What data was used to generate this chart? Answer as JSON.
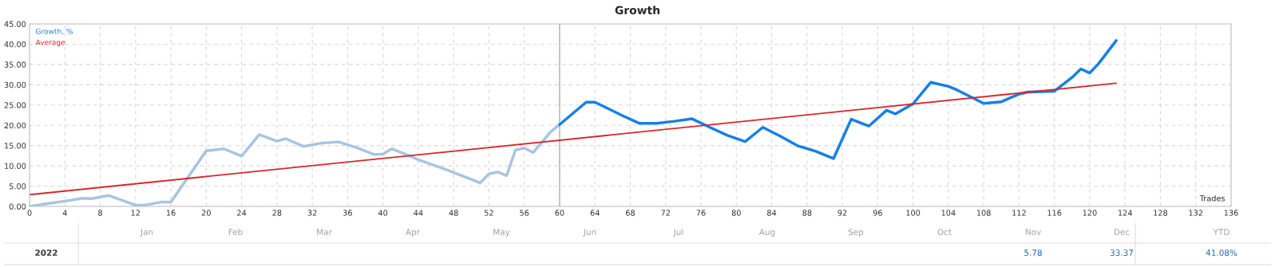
{
  "chart_data": {
    "type": "line",
    "title": "Growth",
    "xlabel": "Trades",
    "series": [
      {
        "color": "#a9c4e0",
        "x": [
          0,
          2,
          4,
          6,
          7,
          9,
          11,
          12,
          13,
          15,
          16,
          20,
          22,
          24,
          26,
          28,
          29,
          31,
          33,
          35,
          37,
          39,
          40,
          41,
          43,
          44,
          47,
          51,
          52,
          53,
          54,
          55,
          56,
          57,
          59,
          60
        ],
        "values": [
          0,
          0.7,
          1.3,
          2.0,
          1.9,
          2.7,
          1.1,
          0.3,
          0.3,
          1.1,
          1.1,
          13.7,
          14.2,
          12.4,
          17.7,
          16.1,
          16.7,
          14.8,
          15.6,
          15.9,
          14.5,
          12.8,
          12.9,
          14.2,
          12.5,
          11.5,
          9.2,
          5.8,
          8.0,
          8.5,
          7.6,
          13.9,
          14.4,
          13.3,
          18.4,
          20.2
        ]
      },
      {
        "name": "Growth, %",
        "color": "#1580e6",
        "x": [
          60,
          63,
          64,
          67,
          69,
          71,
          73,
          75,
          77,
          79,
          81,
          83,
          85,
          87,
          89,
          91,
          93,
          95,
          97,
          98,
          100,
          102,
          104,
          105,
          108,
          110,
          112,
          113,
          116,
          118,
          119,
          120,
          121,
          123
        ],
        "values": [
          20.2,
          25.7,
          25.7,
          22.5,
          20.5,
          20.5,
          21.0,
          21.6,
          19.5,
          17.5,
          16.0,
          19.5,
          17.3,
          14.9,
          13.6,
          11.8,
          21.5,
          19.8,
          23.7,
          22.8,
          25.3,
          30.6,
          29.6,
          28.7,
          25.4,
          25.8,
          27.7,
          28.2,
          28.4,
          31.8,
          33.9,
          32.9,
          35.2,
          40.9
        ]
      },
      {
        "name": "Average",
        "color": "#d9262b",
        "x": [
          0,
          123
        ],
        "values": [
          2.9,
          30.4
        ]
      }
    ],
    "ref_lines": [
      {
        "axis": "x",
        "value": 60,
        "color": "#a0a0a0"
      }
    ],
    "xlim": [
      0,
      136
    ],
    "xticks": [
      0,
      4,
      8,
      12,
      16,
      20,
      24,
      28,
      32,
      36,
      40,
      44,
      48,
      52,
      56,
      60,
      64,
      68,
      72,
      76,
      80,
      84,
      88,
      92,
      96,
      100,
      104,
      108,
      112,
      116,
      120,
      124,
      128,
      132,
      136
    ],
    "ylim": [
      0,
      45
    ],
    "yticks": [
      {
        "value": 0,
        "label": "0.00"
      },
      {
        "value": 5,
        "label": "5.00"
      },
      {
        "value": 10,
        "label": "10.00"
      },
      {
        "value": 15,
        "label": "15.00"
      },
      {
        "value": 20,
        "label": "20.00"
      },
      {
        "value": 25,
        "label": "25.00"
      },
      {
        "value": 30,
        "label": "30.00"
      },
      {
        "value": 35,
        "label": "35.00"
      },
      {
        "value": 40,
        "label": "40.00"
      },
      {
        "value": 45,
        "label": "45.00"
      }
    ],
    "grid": true,
    "legend": "top left",
    "annotations": [
      "Jan",
      "Feb",
      "Mar",
      "Apr",
      "May",
      "Jun",
      "Jul",
      "Aug",
      "Sep",
      "Oct",
      "Nov",
      "Dec",
      "YTD",
      "2022",
      "5.78",
      "33.37",
      "41.08%"
    ]
  }
}
